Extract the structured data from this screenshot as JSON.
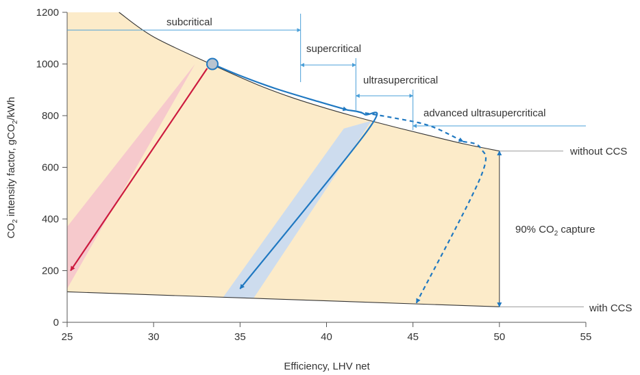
{
  "colors": {
    "fill": "#fcebc9",
    "blue": "#1f78c1",
    "blue_band": "#c8daf2",
    "red": "#cc1a3f",
    "red_band": "#f5c5cc",
    "axis": "#555555",
    "outline": "#333333",
    "annotation_line": "#4a9fd8",
    "marker_fill": "#b9c4cf"
  },
  "chart_data": {
    "type": "line",
    "title": "",
    "xlabel": "Efficiency,  LHV net",
    "ylabel": "CO2 intensity factor, gCO2/kWh",
    "ylabel_parts": [
      "CO",
      "2",
      " intensity factor, gCO",
      "2",
      "/kWh"
    ],
    "xlim": [
      25,
      55
    ],
    "ylim": [
      0,
      1200
    ],
    "xticks": [
      25,
      30,
      35,
      40,
      45,
      50,
      55
    ],
    "yticks": [
      0,
      200,
      400,
      600,
      800,
      1000,
      1200
    ],
    "grid": false,
    "reference_lines": [
      {
        "name": "without CCS",
        "points": [
          [
            28,
            1200
          ],
          [
            30,
            1105
          ],
          [
            33.3,
            1000
          ],
          [
            36,
            920
          ],
          [
            38,
            870
          ],
          [
            40,
            828
          ],
          [
            42,
            790
          ],
          [
            44,
            755
          ],
          [
            46,
            722
          ],
          [
            48,
            690
          ],
          [
            50,
            663
          ]
        ]
      },
      {
        "name": "with CCS",
        "points": [
          [
            25,
            118
          ],
          [
            50,
            60
          ]
        ]
      }
    ],
    "series": [
      {
        "style": "solid",
        "color": "blue",
        "points": [
          [
            33.4,
            1000
          ],
          [
            35,
            955
          ],
          [
            37,
            906
          ],
          [
            39.5,
            855
          ],
          [
            41.2,
            822
          ]
        ]
      },
      {
        "style": "dashed",
        "color": "blue",
        "points": [
          [
            41.8,
            815
          ],
          [
            44,
            790
          ],
          [
            46,
            760
          ],
          [
            47.9,
            700
          ]
        ]
      },
      {
        "style": "solid",
        "color": "red",
        "points": [
          [
            33.1,
            983
          ],
          [
            25.2,
            200
          ]
        ]
      },
      {
        "style": "solid",
        "color": "blue",
        "points": [
          [
            41.2,
            822
          ],
          [
            42.2,
            805
          ],
          [
            42.4,
            745
          ],
          [
            35,
            130
          ]
        ]
      },
      {
        "style": "dashed",
        "color": "blue",
        "points": [
          [
            47.9,
            700
          ],
          [
            48.9,
            675
          ],
          [
            48.9,
            560
          ],
          [
            45.2,
            75
          ]
        ]
      }
    ],
    "marker": {
      "x": 33.4,
      "y": 1000
    },
    "bands": [
      {
        "color": "red_band",
        "polygon": [
          [
            32.4,
            1000
          ],
          [
            25,
            370
          ],
          [
            25,
            130
          ]
        ]
      },
      {
        "color": "blue_band",
        "polygon": [
          [
            41.0,
            750
          ],
          [
            42.6,
            780
          ],
          [
            35.8,
            95
          ],
          [
            34.0,
            95
          ]
        ]
      }
    ],
    "annotations": {
      "subcritical": "subcritical",
      "supercritical": "supercritical",
      "ultrasupercritical": "ultrasupercritical",
      "advanced": "advanced ultrasupercritical",
      "without_ccs": "without CCS",
      "with_ccs": "with CCS",
      "capture_parts": [
        "90% CO",
        "2",
        " capture"
      ]
    },
    "regime_boundaries": [
      {
        "label": "subcritical",
        "from": 25,
        "to": 38.5
      },
      {
        "label": "supercritical",
        "from": 38.5,
        "to": 41.7
      },
      {
        "label": "ultrasupercritical",
        "from": 41.7,
        "to": 45.0
      },
      {
        "label": "advanced ultrasupercritical",
        "from": 45.0,
        "to": 55
      }
    ],
    "capture_bracket": {
      "x": 50,
      "from": 60,
      "to": 663
    }
  }
}
